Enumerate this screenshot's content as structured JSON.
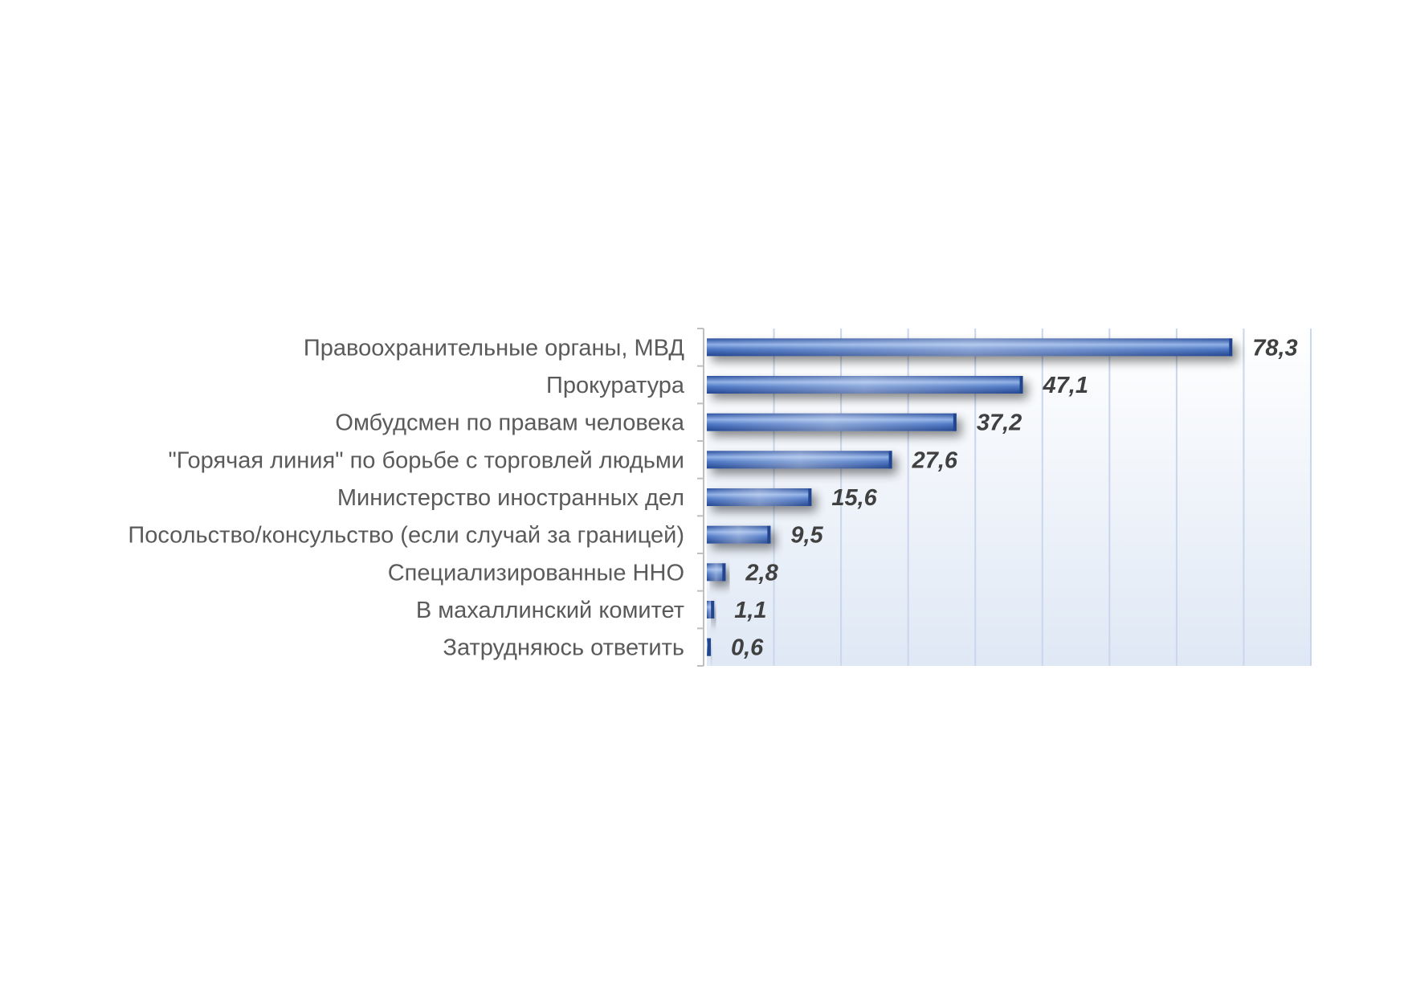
{
  "chart_data": {
    "type": "bar",
    "orientation": "horizontal",
    "title": "",
    "xlabel": "",
    "ylabel": "",
    "categories": [
      "Правоохранительные  органы, МВД",
      "Прокуратура",
      "Омбудсмен по правам человека",
      "\"Горячая линия\" по борьбе с торговлей людьми",
      "Министерство иностранных дел",
      "Посольство/консульство (если случай за границей)",
      "Специализированные ННО",
      "В махаллинский  комитет",
      "Затрудняюсь ответить"
    ],
    "values": [
      78.3,
      47.1,
      37.2,
      27.6,
      15.6,
      9.5,
      2.8,
      1.1,
      0.6
    ],
    "value_labels": [
      "78,3",
      "47,1",
      "37,2",
      "27,6",
      "15,6",
      "9,5",
      "2,8",
      "1,1",
      "0,6"
    ],
    "xlim": [
      0,
      90
    ],
    "grid": true,
    "legend": "none",
    "colors": {
      "bar": "#3b64b4",
      "bar_light": "#8fb0e6",
      "bar_dark": "#23458f",
      "plot_bg_top": "#ffffff",
      "plot_bg_bottom": "#dfe8f5",
      "grid": "#c9d6ec",
      "category_text": "#5a5a5a",
      "value_text": "#404040"
    }
  }
}
